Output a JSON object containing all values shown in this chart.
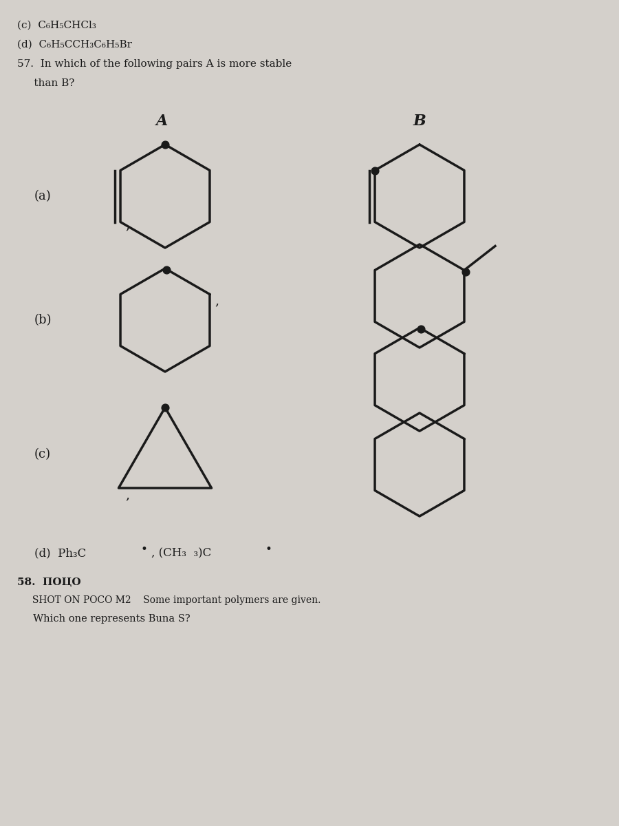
{
  "bg_color": "#d4d0cb",
  "text_color": "#1a1a1a",
  "title_lines": [
    "(c)  C₆H₅CHCl₃",
    "(d)  C₆H₅CCH₃C₆H₅Br",
    "57.  In which of the following pairs A is more stable",
    "     than B?"
  ],
  "label_A": "A",
  "label_B": "B",
  "label_a": "(a)",
  "label_b": "(b)",
  "label_c": "(c)",
  "label_d": "(d)",
  "footer_lines": [
    "(d)  Ph₃C•,(CH₃ ₃)C•",
    "58.  POCO",
    "     SHOT ON POCO M2    Some important polymers are given.",
    "     Which one represents Buna S?"
  ]
}
